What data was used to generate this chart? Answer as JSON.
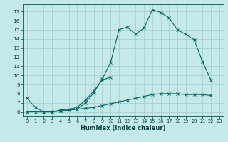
{
  "xlabel": "Humidex (Indice chaleur)",
  "bg_color": "#c5e8e8",
  "grid_color": "#a0cccc",
  "line_color": "#006868",
  "xlim": [
    -0.5,
    23.5
  ],
  "ylim": [
    5.5,
    17.8
  ],
  "xticks": [
    0,
    1,
    2,
    3,
    4,
    5,
    6,
    7,
    8,
    9,
    10,
    11,
    12,
    13,
    14,
    15,
    16,
    17,
    18,
    19,
    20,
    21,
    22,
    23
  ],
  "yticks": [
    6,
    7,
    8,
    9,
    10,
    11,
    12,
    13,
    14,
    15,
    16,
    17
  ],
  "line1_x": [
    0,
    1,
    2,
    3,
    4,
    5,
    6,
    7,
    8,
    9,
    10,
    11,
    12,
    13,
    14,
    15,
    16,
    17,
    18,
    19,
    20,
    21,
    22
  ],
  "line1_y": [
    7.5,
    6.5,
    6.0,
    6.0,
    6.1,
    6.2,
    6.3,
    7.0,
    8.1,
    9.6,
    11.4,
    15.0,
    15.3,
    14.5,
    15.2,
    17.2,
    16.9,
    16.3,
    15.0,
    14.5,
    13.9,
    11.5,
    9.5
  ],
  "line2_x": [
    2,
    3,
    4,
    5,
    6,
    7,
    8,
    9,
    10
  ],
  "line2_y": [
    6.0,
    6.0,
    6.2,
    6.3,
    6.5,
    7.3,
    8.3,
    9.5,
    9.8
  ],
  "line3_x": [
    0,
    1,
    2,
    3,
    4,
    5,
    6,
    7,
    8,
    9,
    10,
    11,
    12,
    13,
    14,
    15,
    16,
    17,
    18,
    19,
    20,
    21,
    22
  ],
  "line3_y": [
    6.0,
    6.0,
    6.0,
    6.05,
    6.1,
    6.2,
    6.3,
    6.4,
    6.5,
    6.7,
    6.9,
    7.1,
    7.3,
    7.5,
    7.7,
    7.9,
    8.0,
    8.0,
    8.0,
    7.9,
    7.9,
    7.9,
    7.8
  ]
}
